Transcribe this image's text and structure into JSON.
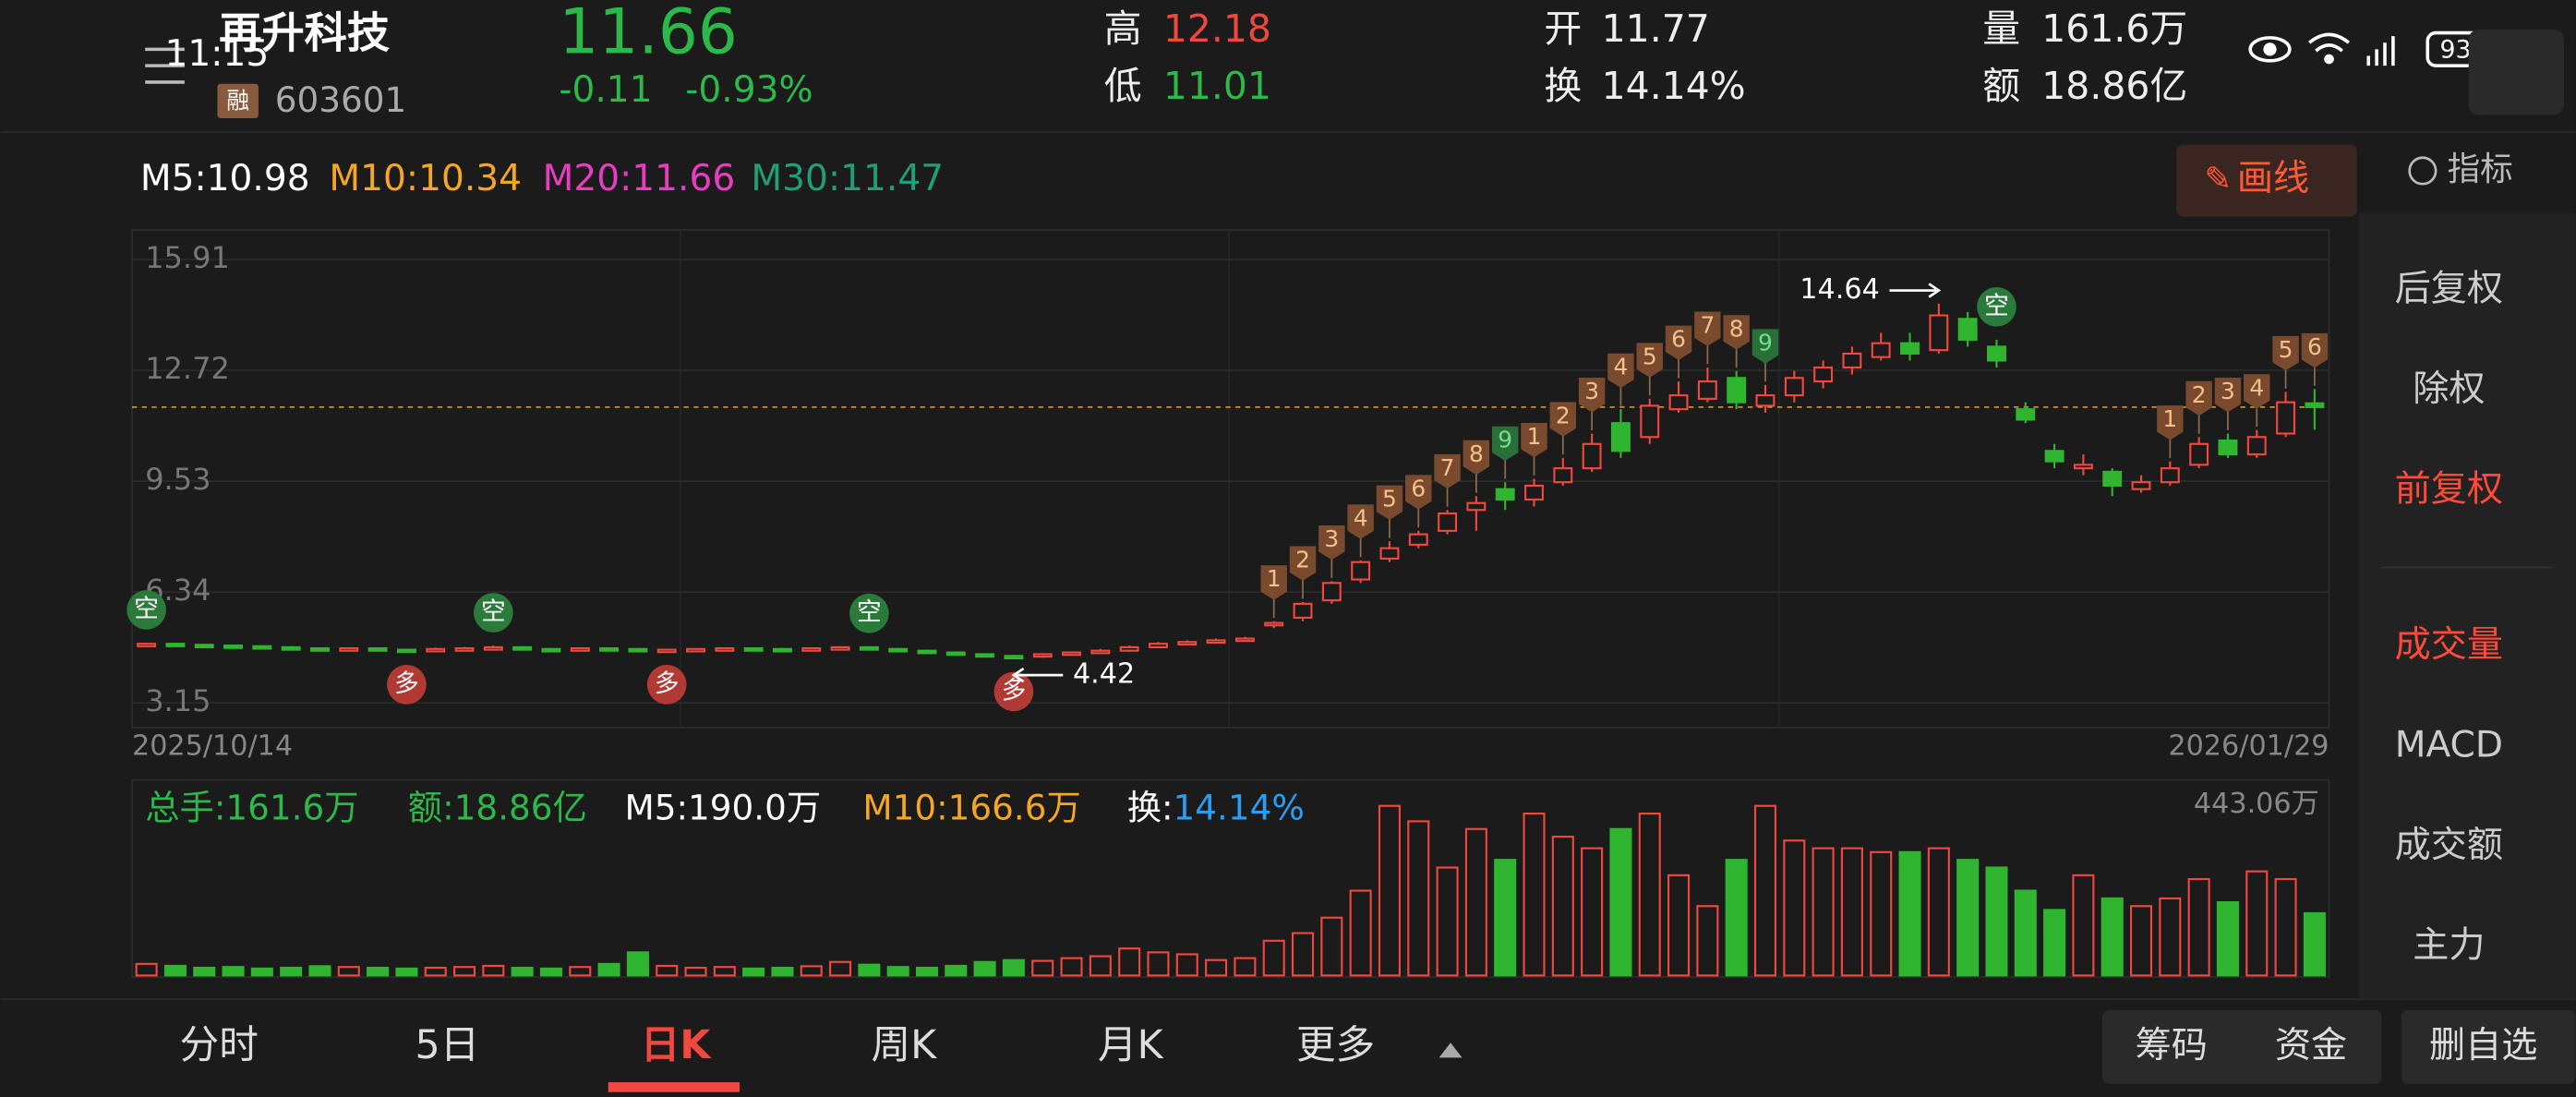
{
  "header": {
    "status_time": "11:15",
    "name": "再升科技",
    "tag": "融",
    "code": "603601",
    "price": "11.66",
    "change": "-0.11",
    "change_pct": "-0.93%",
    "high_label": "高",
    "high": "12.18",
    "low_label": "低",
    "low": "11.01",
    "open_label": "开",
    "open": "11.77",
    "turnover_label": "换",
    "turnover": "14.14%",
    "volume_label": "量",
    "volume": "161.6万",
    "amount_label": "额",
    "amount": "18.86亿",
    "battery": "93"
  },
  "ma_row": [
    "M5:10.98",
    "M10:10.34",
    "M20:11.66",
    "M30:11.47"
  ],
  "draw_button": "画线",
  "side_title": "指标",
  "side_menu": [
    "后复权",
    "除权",
    "前复权",
    "成交量",
    "MACD",
    "成交额",
    "主力"
  ],
  "vol_row": {
    "total": "总手:161.6万",
    "amount": "额:18.86亿",
    "m5": "M5:190.0万",
    "m10": "M10:166.6万",
    "turnover_label": "换:",
    "turnover": "14.14%"
  },
  "tabs": [
    "分时",
    "5日",
    "日K",
    "周K",
    "月K",
    "更多"
  ],
  "buttons": [
    "筹码",
    "资金",
    "删自选"
  ],
  "chart_data": {
    "type": "candlestick",
    "categories": [
      "2025/10/14",
      null,
      null,
      null,
      null,
      null,
      null,
      null,
      null,
      null,
      null,
      null,
      null,
      null,
      null,
      null,
      null,
      null,
      null,
      null,
      null,
      null,
      null,
      null,
      null,
      null,
      null,
      null,
      null,
      null,
      null,
      null,
      null,
      null,
      null,
      null,
      null,
      null,
      null,
      null,
      null,
      null,
      null,
      null,
      null,
      null,
      null,
      null,
      null,
      null,
      null,
      null,
      null,
      null,
      null,
      null,
      null,
      null,
      null,
      null,
      null,
      null,
      null,
      null,
      null,
      null,
      null,
      null,
      null,
      null,
      null,
      null,
      null,
      null,
      null,
      "2026/01/29"
    ],
    "open": [
      4.8,
      4.85,
      4.82,
      4.8,
      4.78,
      4.75,
      4.72,
      4.7,
      4.72,
      4.68,
      4.65,
      4.7,
      4.72,
      4.75,
      4.7,
      4.68,
      4.72,
      4.7,
      4.65,
      4.68,
      4.7,
      4.72,
      4.7,
      4.68,
      4.72,
      4.75,
      4.7,
      4.65,
      4.6,
      4.55,
      4.5,
      4.48,
      4.55,
      4.6,
      4.65,
      4.75,
      4.85,
      4.9,
      4.95,
      5.4,
      5.6,
      6.1,
      6.7,
      7.3,
      7.7,
      8.1,
      8.7,
      9.3,
      9.0,
      9.5,
      9.9,
      11.2,
      10.8,
      11.6,
      11.9,
      12.5,
      11.7,
      12.0,
      12.4,
      12.8,
      13.1,
      13.5,
      13.3,
      14.2,
      13.4,
      11.6,
      10.4,
      9.9,
      9.8,
      9.3,
      9.5,
      10.0,
      10.7,
      10.3,
      10.9,
      11.77
    ],
    "high": [
      4.88,
      4.88,
      4.85,
      4.83,
      4.8,
      4.78,
      4.75,
      4.75,
      4.75,
      4.7,
      4.74,
      4.76,
      4.8,
      4.78,
      4.73,
      4.75,
      4.75,
      4.73,
      4.7,
      4.72,
      4.75,
      4.75,
      4.73,
      4.75,
      4.78,
      4.78,
      4.73,
      4.68,
      4.63,
      4.58,
      4.53,
      4.58,
      4.63,
      4.7,
      4.8,
      4.9,
      4.95,
      5.0,
      5.05,
      5.5,
      6.05,
      6.65,
      7.25,
      7.8,
      8.1,
      8.7,
      9.1,
      9.5,
      9.6,
      10.2,
      10.9,
      11.6,
      11.9,
      12.4,
      12.8,
      12.7,
      12.3,
      12.7,
      13.0,
      13.4,
      13.8,
      13.8,
      14.64,
      14.4,
      13.6,
      11.8,
      10.6,
      10.3,
      9.9,
      9.7,
      10.1,
      10.8,
      10.9,
      11.0,
      12.1,
      12.18
    ],
    "low": [
      4.77,
      4.79,
      4.77,
      4.75,
      4.72,
      4.69,
      4.67,
      4.67,
      4.65,
      4.62,
      4.62,
      4.67,
      4.69,
      4.67,
      4.65,
      4.65,
      4.67,
      4.62,
      4.62,
      4.65,
      4.67,
      4.67,
      4.65,
      4.65,
      4.69,
      4.67,
      4.62,
      4.57,
      4.52,
      4.47,
      4.42,
      4.45,
      4.52,
      4.57,
      4.62,
      4.72,
      4.82,
      4.87,
      4.92,
      5.3,
      5.5,
      6.0,
      6.6,
      7.2,
      7.6,
      8.0,
      8.1,
      8.7,
      8.8,
      9.4,
      9.8,
      10.2,
      10.6,
      11.5,
      11.8,
      11.6,
      11.5,
      11.8,
      12.2,
      12.6,
      13.0,
      13.0,
      13.2,
      13.4,
      12.8,
      11.2,
      9.9,
      9.7,
      9.1,
      9.2,
      9.4,
      9.9,
      10.2,
      10.2,
      10.8,
      11.01
    ],
    "close": [
      4.85,
      4.82,
      4.8,
      4.78,
      4.75,
      4.72,
      4.7,
      4.72,
      4.68,
      4.65,
      4.7,
      4.72,
      4.75,
      4.7,
      4.68,
      4.72,
      4.7,
      4.65,
      4.68,
      4.7,
      4.72,
      4.7,
      4.68,
      4.72,
      4.75,
      4.7,
      4.65,
      4.6,
      4.55,
      4.5,
      4.48,
      4.55,
      4.6,
      4.65,
      4.75,
      4.85,
      4.9,
      4.95,
      5.0,
      5.45,
      6.0,
      6.6,
      7.2,
      7.6,
      8.0,
      8.6,
      8.9,
      9.0,
      9.4,
      9.9,
      10.6,
      10.4,
      11.7,
      12.0,
      12.4,
      11.8,
      12.0,
      12.5,
      12.8,
      13.2,
      13.5,
      13.2,
      14.3,
      13.6,
      13.0,
      11.3,
      10.1,
      10.0,
      9.4,
      9.5,
      9.9,
      10.6,
      10.3,
      10.8,
      11.8,
      11.66
    ],
    "up_color": "#f0483e",
    "down_color": "#2fb52f",
    "ylim": [
      2.44,
      16.76
    ],
    "yticks": [
      15.91,
      12.72,
      9.53,
      6.34,
      3.15
    ],
    "td": [
      null,
      null,
      null,
      null,
      null,
      null,
      null,
      null,
      null,
      null,
      null,
      null,
      null,
      null,
      null,
      null,
      null,
      null,
      null,
      null,
      null,
      null,
      null,
      null,
      null,
      null,
      null,
      null,
      null,
      null,
      null,
      null,
      null,
      null,
      null,
      null,
      null,
      null,
      null,
      "1",
      "2",
      "3",
      "4",
      "5",
      "6",
      "7",
      "8",
      "9",
      "1",
      "2",
      "3",
      "4",
      "5",
      "6",
      "7",
      "8",
      "9",
      null,
      null,
      null,
      null,
      null,
      null,
      null,
      null,
      null,
      null,
      null,
      null,
      null,
      "1",
      "2",
      "3",
      "4",
      "5",
      "6"
    ],
    "signals": [
      "空",
      null,
      null,
      null,
      null,
      null,
      null,
      null,
      null,
      "多",
      null,
      null,
      "空",
      null,
      null,
      null,
      null,
      null,
      "多",
      null,
      null,
      null,
      null,
      null,
      null,
      "空",
      null,
      null,
      null,
      null,
      "多",
      null,
      null,
      null,
      null,
      null,
      null,
      null,
      null,
      null,
      null,
      null,
      null,
      null,
      null,
      null,
      null,
      null,
      null,
      null,
      null,
      null,
      null,
      null,
      null,
      null,
      null,
      null,
      null,
      null,
      null,
      null,
      null,
      null,
      "空",
      null,
      null,
      null,
      null,
      null,
      null,
      null,
      null,
      null,
      null,
      null
    ],
    "volume": {
      "values": [
        30,
        25,
        20,
        22,
        18,
        20,
        24,
        22,
        20,
        18,
        20,
        22,
        25,
        20,
        18,
        22,
        30,
        60,
        25,
        20,
        22,
        18,
        20,
        24,
        35,
        28,
        22,
        20,
        25,
        35,
        40,
        38,
        45,
        50,
        70,
        60,
        55,
        40,
        45,
        90,
        110,
        150,
        220,
        440,
        400,
        280,
        380,
        300,
        420,
        360,
        330,
        380,
        420,
        260,
        180,
        300,
        440,
        350,
        330,
        330,
        320,
        320,
        330,
        300,
        280,
        220,
        170,
        260,
        200,
        180,
        200,
        250,
        190,
        270,
        250,
        161.6
      ],
      "ylim": [
        0,
        443.06
      ],
      "yticks": [
        {
          "value": 443.06,
          "label": "443.06万"
        }
      ]
    }
  }
}
